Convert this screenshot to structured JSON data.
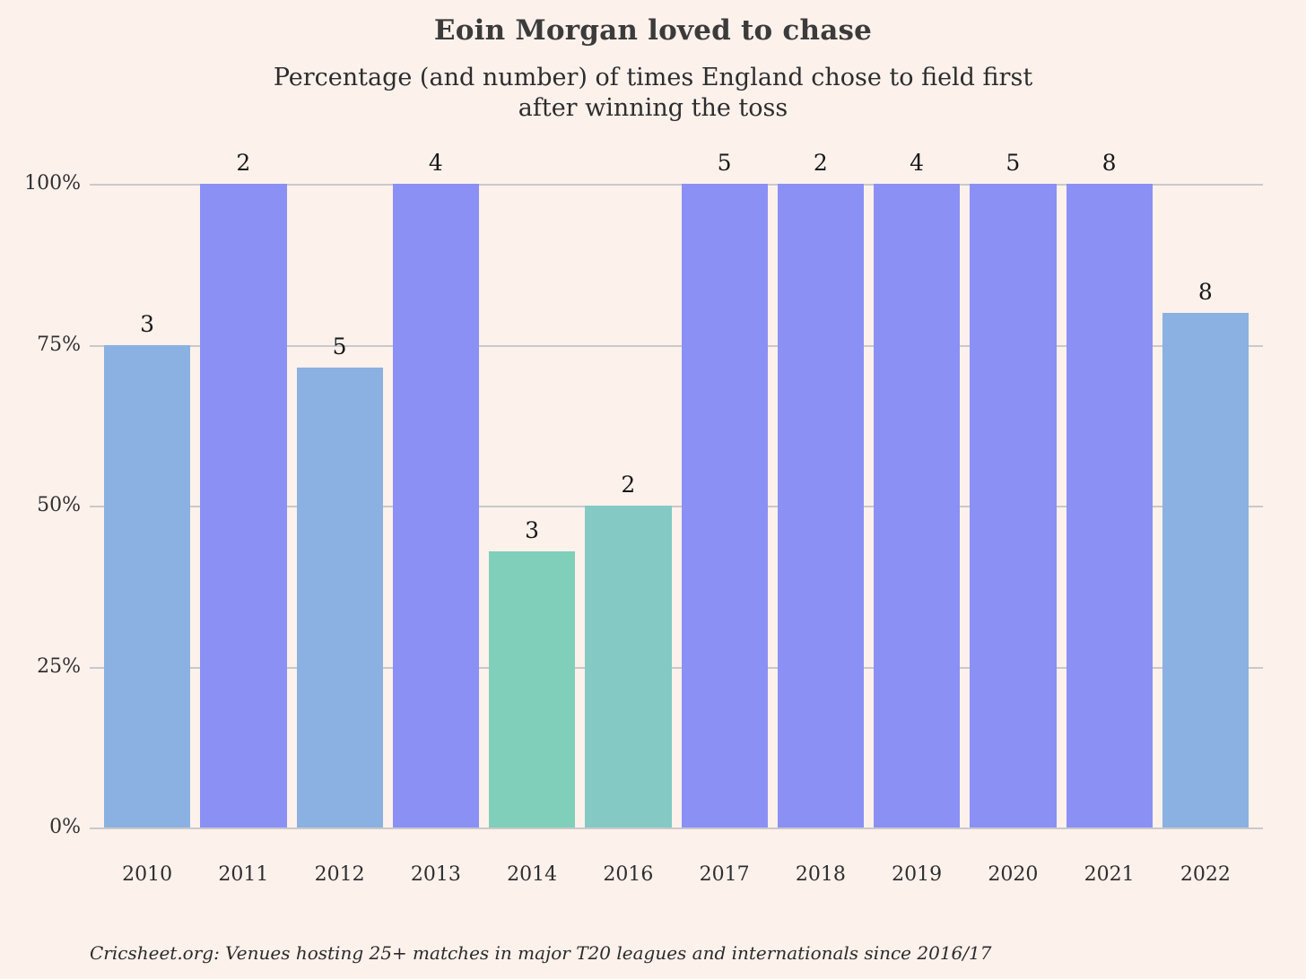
{
  "title": "Eoin Morgan loved to chase",
  "subtitle_line1": "Percentage (and number) of times England chose to field first",
  "subtitle_line2": "after winning the toss",
  "footer": "Cricsheet.org: Venues hosting 25+ matches in major T20 leagues and internationals since 2016/17",
  "colors": {
    "background": "#fdf1ec",
    "gridline": "#c9c9c9",
    "bar_full_periwinkle": "#8b90f5",
    "bar_high_lightblue": "#8ab1e1",
    "bar_low_teal_2014": "#80cfba",
    "bar_low_teal_2016": "#84c9c4",
    "title_text": "#3b3b3b"
  },
  "chart_data": {
    "type": "bar",
    "title": "Eoin Morgan loved to chase",
    "subtitle": "Percentage (and number) of times England chose to field first after winning the toss",
    "xlabel": "",
    "ylabel": "",
    "ylim": [
      0,
      100
    ],
    "grid": true,
    "legend_position": "none",
    "categories": [
      "2010",
      "2011",
      "2012",
      "2013",
      "2014",
      "2016",
      "2017",
      "2018",
      "2019",
      "2020",
      "2021",
      "2022"
    ],
    "values_percent": [
      75,
      100,
      71.4,
      100,
      42.9,
      50,
      100,
      100,
      100,
      100,
      100,
      80
    ],
    "value_labels": [
      "3",
      "2",
      "5",
      "4",
      "3",
      "2",
      "5",
      "2",
      "4",
      "5",
      "8",
      "8"
    ],
    "bar_colors": [
      "#8ab1e1",
      "#8b90f5",
      "#8ab1e1",
      "#8b90f5",
      "#80cfba",
      "#84c9c4",
      "#8b90f5",
      "#8b90f5",
      "#8b90f5",
      "#8b90f5",
      "#8b90f5",
      "#8ab1e1"
    ],
    "y_ticks_desc": [
      "100%",
      "75%",
      "50%",
      "25%",
      "0%"
    ]
  }
}
